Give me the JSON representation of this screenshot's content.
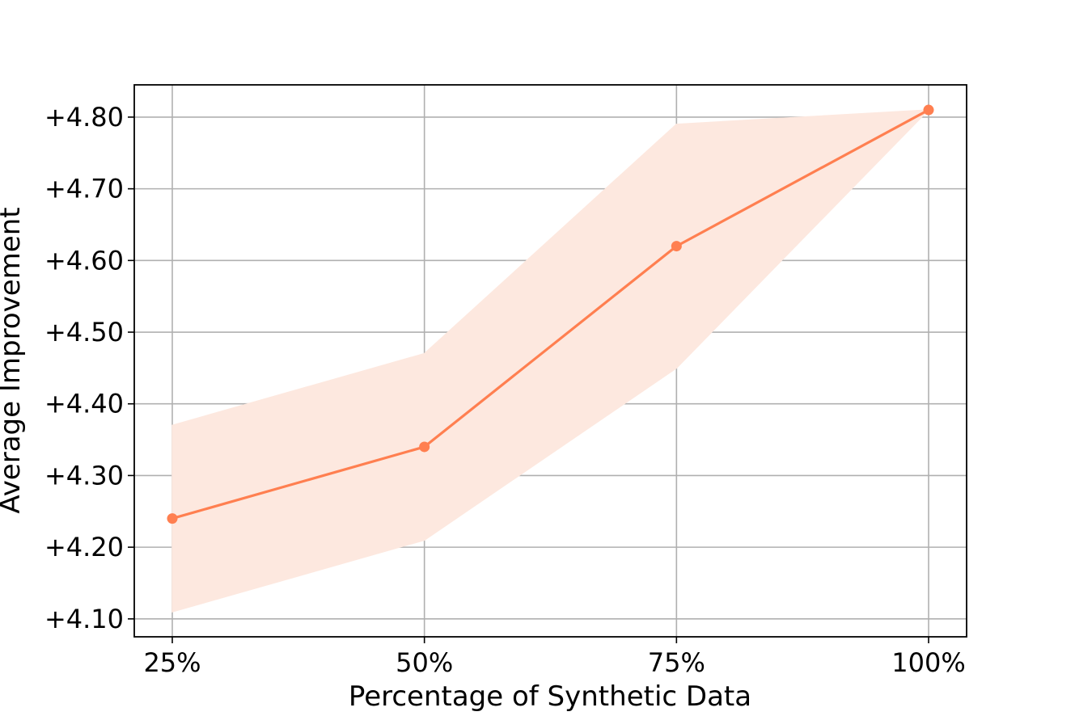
{
  "chart_data": {
    "type": "line",
    "title": "",
    "xlabel": "Percentage of Synthetic Data",
    "ylabel": "Average Improvement",
    "categories": [
      "25%",
      "50%",
      "75%",
      "100%"
    ],
    "yticks": [
      "+4.10",
      "+4.20",
      "+4.30",
      "+4.40",
      "+4.50",
      "+4.60",
      "+4.70",
      "+4.80"
    ],
    "ylim": [
      4.075,
      4.845
    ],
    "grid": true,
    "series": [
      {
        "values": [
          4.24,
          4.34,
          4.62,
          4.81
        ],
        "band_lower": [
          4.11,
          4.21,
          4.45,
          4.81
        ],
        "band_upper": [
          4.37,
          4.47,
          4.79,
          4.81
        ],
        "color": "#ff7f50",
        "band_color": "#fde8df"
      }
    ]
  }
}
